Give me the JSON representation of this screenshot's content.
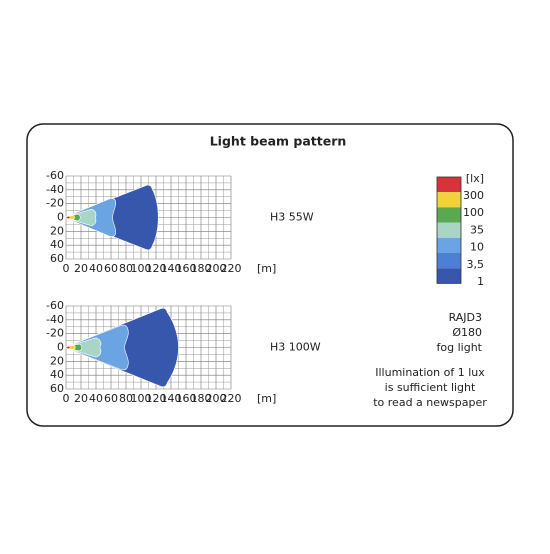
{
  "title": "Light beam pattern",
  "plots": [
    {
      "label": "H3 55W",
      "xticks": [
        0,
        20,
        40,
        60,
        80,
        100,
        120,
        140,
        160,
        180,
        200,
        220
      ],
      "yticks": [
        -60,
        -40,
        -20,
        0,
        20,
        40,
        60
      ],
      "x_unit": "[m]"
    },
    {
      "label": "H3 100W",
      "xticks": [
        0,
        20,
        40,
        60,
        80,
        100,
        120,
        140,
        160,
        180,
        200,
        220
      ],
      "yticks": [
        -60,
        -40,
        -20,
        0,
        20,
        40,
        60
      ],
      "x_unit": "[m]"
    }
  ],
  "legend": {
    "unit": "[lx]",
    "levels": [
      "300",
      "100",
      "35",
      "10",
      "3,5",
      "1"
    ],
    "colors": [
      "#d9333a",
      "#f1d23a",
      "#5aa84f",
      "#a8d5c6",
      "#6aa4e2",
      "#4d80d4",
      "#3757ad"
    ]
  },
  "info": [
    "RAJD3",
    "Ø180",
    "fog light"
  ],
  "note": [
    "Illumination of 1 lux",
    "is sufficient light",
    "to read a newspaper"
  ]
}
